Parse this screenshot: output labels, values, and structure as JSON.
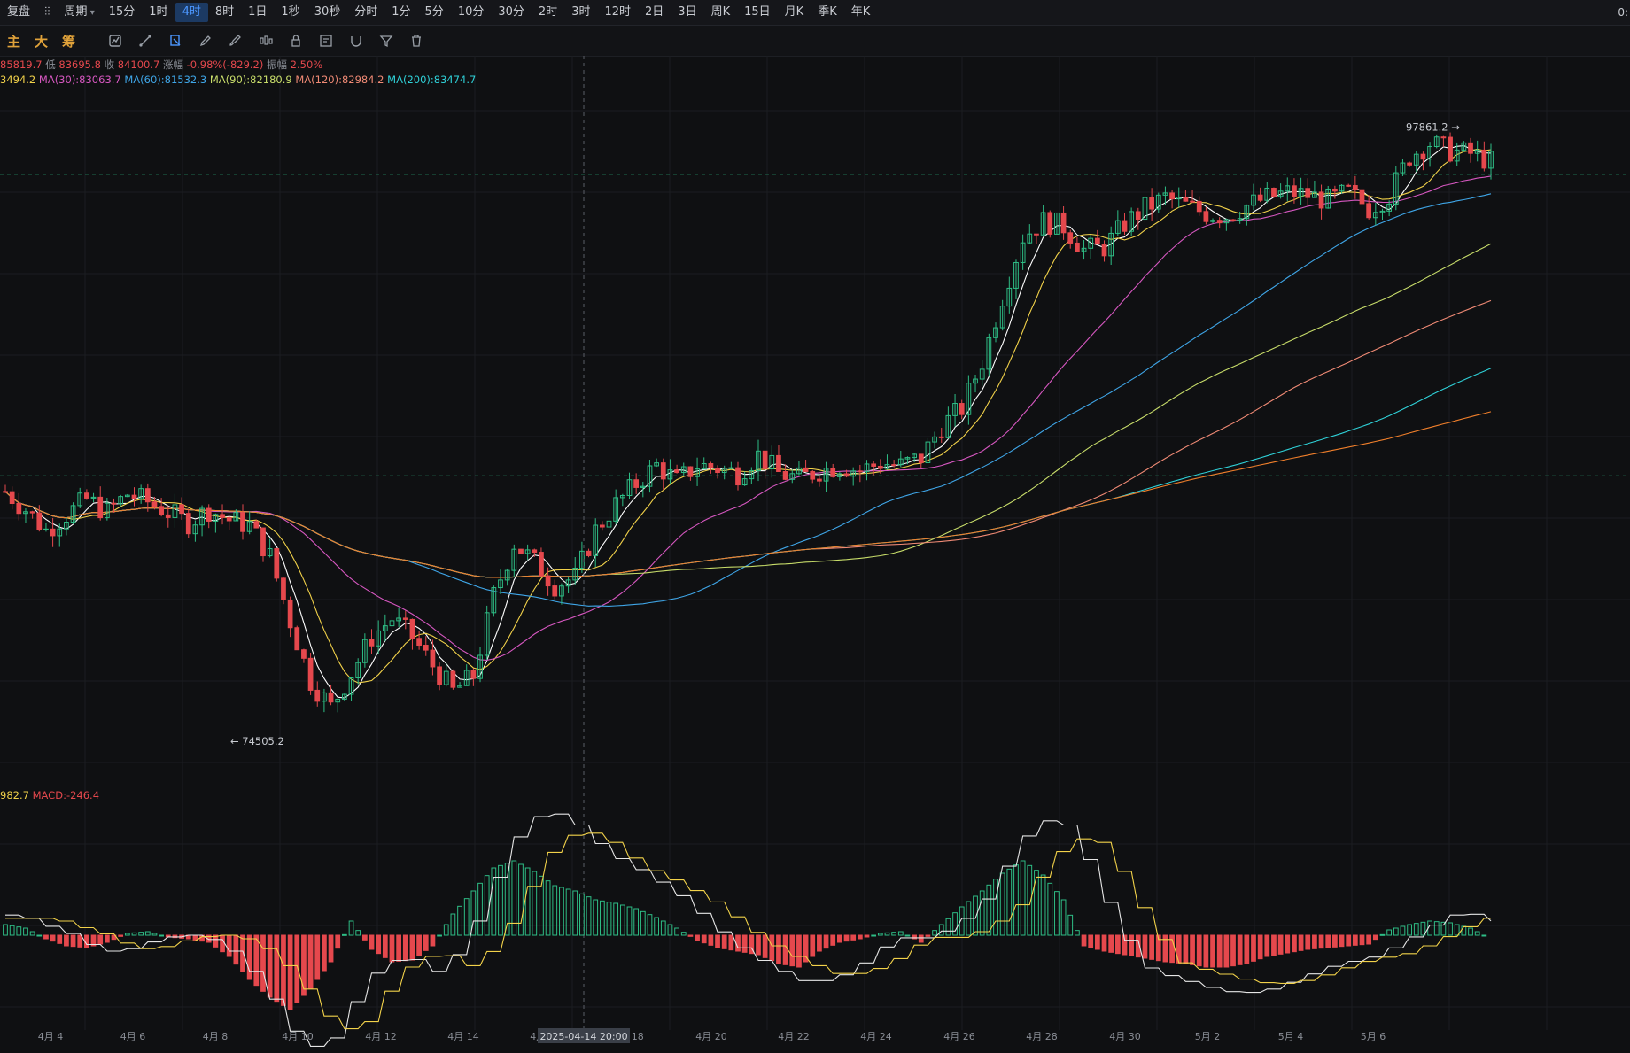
{
  "toolbar": {
    "items": [
      {
        "label": "复盘",
        "active": false
      },
      {
        "label": "⫶⫶",
        "icon": "candle-type-icon",
        "active": false
      },
      {
        "label": "周期",
        "icon": "chevron-down-icon",
        "active": false
      },
      {
        "label": "15分",
        "active": false
      },
      {
        "label": "1时",
        "active": false
      },
      {
        "label": "4时",
        "active": true
      },
      {
        "label": "8时",
        "active": false
      },
      {
        "label": "1日",
        "active": false
      },
      {
        "label": "1秒",
        "active": false
      },
      {
        "label": "30秒",
        "active": false
      },
      {
        "label": "分时",
        "active": false
      },
      {
        "label": "1分",
        "active": false
      },
      {
        "label": "5分",
        "active": false
      },
      {
        "label": "10分",
        "active": false
      },
      {
        "label": "30分",
        "active": false
      },
      {
        "label": "2时",
        "active": false
      },
      {
        "label": "3时",
        "active": false
      },
      {
        "label": "12时",
        "active": false
      },
      {
        "label": "2日",
        "active": false
      },
      {
        "label": "3日",
        "active": false
      },
      {
        "label": "周K",
        "active": false
      },
      {
        "label": "15日",
        "active": false
      },
      {
        "label": "月K",
        "active": false
      },
      {
        "label": "季K",
        "active": false
      },
      {
        "label": "年K",
        "active": false
      }
    ],
    "right_label": "0:"
  },
  "toolbar2": {
    "tabs": [
      "主",
      "大",
      "筹"
    ],
    "tools": [
      "indicator-icon",
      "draw-icon",
      "selection-icon",
      "pen-icon",
      "brush-icon",
      "candles-icon",
      "lock-icon",
      "note-icon",
      "magnet-icon",
      "filter-icon",
      "trash-icon"
    ]
  },
  "colors": {
    "up": "#2ebd85",
    "down": "#e5484d",
    "ma5": "#ffffff",
    "ma10": "#f2d24a",
    "ma30": "#d657c0",
    "ma60": "#3fa6e8",
    "ma90": "#c8dd6a",
    "ma120": "#f08a75",
    "ma200": "#2fd1d8",
    "ma_extra": "#f07f2b",
    "dif": "#e6e6e6",
    "dea": "#f2d24a"
  },
  "info": {
    "price_line": [
      {
        "text": "85819.7",
        "color": "#e5484d"
      },
      {
        "text": " 低 ",
        "color": "#8a8e96"
      },
      {
        "text": "83695.8",
        "color": "#e5484d"
      },
      {
        "text": " 收 ",
        "color": "#8a8e96"
      },
      {
        "text": "84100.7",
        "color": "#e5484d"
      },
      {
        "text": " 涨幅 ",
        "color": "#8a8e96"
      },
      {
        "text": "-0.98%(-829.2)",
        "color": "#e5484d"
      },
      {
        "text": " 振幅 ",
        "color": "#8a8e96"
      },
      {
        "text": "2.50%",
        "color": "#e5484d"
      }
    ],
    "ma_line": [
      {
        "text": "3494.2",
        "color": "#f2d24a"
      },
      {
        "text": "MA(30):83063.7",
        "color": "#d657c0"
      },
      {
        "text": "MA(60):81532.3",
        "color": "#3fa6e8"
      },
      {
        "text": "MA(90):82180.9",
        "color": "#c8dd6a"
      },
      {
        "text": "MA(120):82984.2",
        "color": "#f08a75"
      },
      {
        "text": "MA(200):83474.7",
        "color": "#2fd1d8"
      }
    ],
    "macd_line": [
      {
        "text": "982.7",
        "color": "#f2d24a"
      },
      {
        "text": "MACD:-246.4",
        "color": "#e5484d"
      }
    ]
  },
  "annotations": {
    "high_label": "97861.2 →",
    "low_label": "← 74505.2",
    "crosshair_time": "2025-04-14 20:00"
  },
  "chart_data": {
    "type": "candlestick",
    "title": "",
    "interval": "4时",
    "x_ticks": [
      "4月 4",
      "4月 6",
      "4月 8",
      "4月 10",
      "4月 12",
      "4月 14",
      "4月 16",
      "4月 18",
      "4月 20",
      "4月 22",
      "4月 24",
      "4月 26",
      "4月 28",
      "4月 30",
      "5月 2",
      "5月 4",
      "5月 6"
    ],
    "high": 97861.2,
    "low": 74505.2,
    "last_close": 84100.7,
    "ylim": [
      73000,
      98900
    ],
    "price_path": [
      [
        0,
        83500
      ],
      [
        1,
        82800
      ],
      [
        2,
        82000
      ],
      [
        3,
        82600
      ],
      [
        4,
        83200
      ],
      [
        5,
        82700
      ],
      [
        6,
        83400
      ],
      [
        7,
        83100
      ],
      [
        8,
        82700
      ],
      [
        9,
        82300
      ],
      [
        10,
        82800
      ],
      [
        11,
        82400
      ],
      [
        12,
        82200
      ],
      [
        13,
        81000
      ],
      [
        14,
        78500
      ],
      [
        15,
        76200
      ],
      [
        16,
        75200
      ],
      [
        17,
        76500
      ],
      [
        18,
        77900
      ],
      [
        19,
        78600
      ],
      [
        20,
        77900
      ],
      [
        21,
        76800
      ],
      [
        22,
        75800
      ],
      [
        23,
        76400
      ],
      [
        24,
        79500
      ],
      [
        25,
        81500
      ],
      [
        26,
        80800
      ],
      [
        27,
        79900
      ],
      [
        28,
        80200
      ],
      [
        29,
        82000
      ],
      [
        30,
        83000
      ],
      [
        31,
        83800
      ],
      [
        32,
        84500
      ],
      [
        33,
        83900
      ],
      [
        34,
        84500
      ],
      [
        35,
        84400
      ],
      [
        36,
        84200
      ],
      [
        37,
        84900
      ],
      [
        38,
        84200
      ],
      [
        39,
        84000
      ],
      [
        40,
        84300
      ],
      [
        41,
        84500
      ],
      [
        42,
        84300
      ],
      [
        43,
        84600
      ],
      [
        44,
        84500
      ],
      [
        45,
        84800
      ],
      [
        46,
        86000
      ],
      [
        47,
        86700
      ],
      [
        48,
        88500
      ],
      [
        49,
        91000
      ],
      [
        50,
        93300
      ],
      [
        51,
        93900
      ],
      [
        52,
        93700
      ],
      [
        53,
        92800
      ],
      [
        54,
        92900
      ],
      [
        55,
        93800
      ],
      [
        56,
        94400
      ],
      [
        57,
        94800
      ],
      [
        58,
        94500
      ],
      [
        59,
        94200
      ],
      [
        60,
        94100
      ],
      [
        61,
        94500
      ],
      [
        62,
        94800
      ],
      [
        63,
        95000
      ],
      [
        64,
        94900
      ],
      [
        65,
        94700
      ],
      [
        66,
        95000
      ],
      [
        67,
        94400
      ],
      [
        68,
        94900
      ],
      [
        69,
        96400
      ],
      [
        70,
        96900
      ],
      [
        71,
        96600
      ],
      [
        72,
        96500
      ],
      [
        73,
        96200
      ]
    ],
    "ma_labels": [
      "MA(30):83063.7",
      "MA(60):81532.3",
      "MA(90):82180.9",
      "MA(120):82984.2",
      "MA(200):83474.7"
    ],
    "macd": {
      "label": "MACD:-246.4",
      "histogram": [
        [
          0,
          60
        ],
        [
          1,
          40
        ],
        [
          2,
          -20
        ],
        [
          3,
          -60
        ],
        [
          4,
          -70
        ],
        [
          5,
          -40
        ],
        [
          6,
          10
        ],
        [
          7,
          20
        ],
        [
          8,
          -10
        ],
        [
          9,
          -20
        ],
        [
          10,
          -40
        ],
        [
          11,
          -120
        ],
        [
          12,
          -250
        ],
        [
          13,
          -350
        ],
        [
          14,
          -420
        ],
        [
          15,
          -300
        ],
        [
          16,
          -150
        ],
        [
          17,
          80
        ],
        [
          18,
          -80
        ],
        [
          19,
          -150
        ],
        [
          20,
          -140
        ],
        [
          21,
          -60
        ],
        [
          22,
          120
        ],
        [
          23,
          250
        ],
        [
          24,
          380
        ],
        [
          25,
          420
        ],
        [
          26,
          360
        ],
        [
          27,
          280
        ],
        [
          28,
          250
        ],
        [
          29,
          200
        ],
        [
          30,
          180
        ],
        [
          31,
          150
        ],
        [
          32,
          100
        ],
        [
          33,
          40
        ],
        [
          34,
          -30
        ],
        [
          35,
          -70
        ],
        [
          36,
          -90
        ],
        [
          37,
          -110
        ],
        [
          38,
          -160
        ],
        [
          39,
          -180
        ],
        [
          40,
          -90
        ],
        [
          41,
          -40
        ],
        [
          42,
          -20
        ],
        [
          43,
          10
        ],
        [
          44,
          20
        ],
        [
          45,
          -40
        ],
        [
          46,
          60
        ],
        [
          47,
          160
        ],
        [
          48,
          250
        ],
        [
          49,
          350
        ],
        [
          50,
          420
        ],
        [
          51,
          340
        ],
        [
          52,
          200
        ],
        [
          53,
          -60
        ],
        [
          54,
          -90
        ],
        [
          55,
          -110
        ],
        [
          56,
          -130
        ],
        [
          57,
          -150
        ],
        [
          58,
          -160
        ],
        [
          59,
          -180
        ],
        [
          60,
          -180
        ],
        [
          61,
          -160
        ],
        [
          62,
          -120
        ],
        [
          63,
          -100
        ],
        [
          64,
          -80
        ],
        [
          65,
          -70
        ],
        [
          66,
          -60
        ],
        [
          67,
          -50
        ],
        [
          68,
          30
        ],
        [
          69,
          60
        ],
        [
          70,
          80
        ],
        [
          71,
          70
        ],
        [
          72,
          40
        ],
        [
          73,
          -20
        ]
      ]
    }
  }
}
